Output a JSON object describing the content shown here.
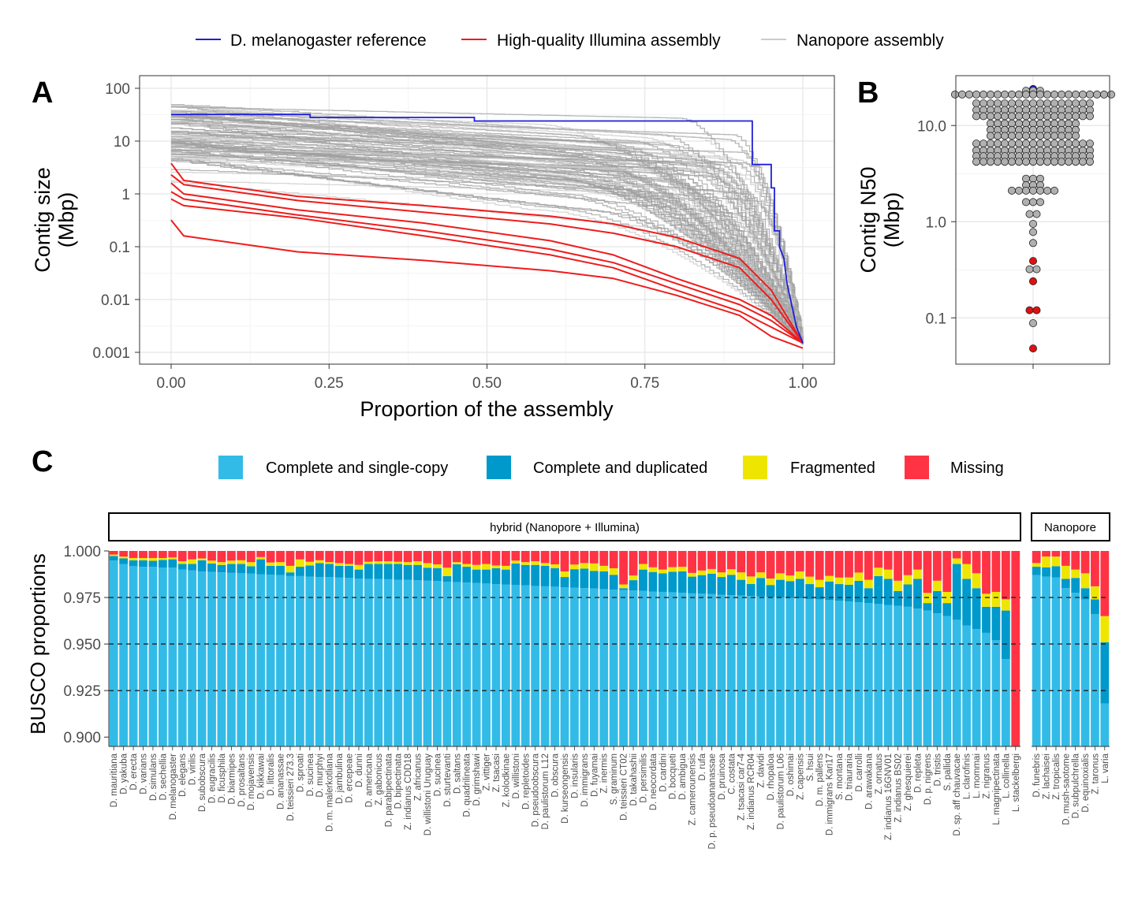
{
  "panels": {
    "a": "A",
    "b": "B",
    "c": "C"
  },
  "colors": {
    "reference": "#1f1fd6",
    "illumina": "#ee1c1c",
    "nanopore_line": "#9e9e9e",
    "complete_single": "#33bbe8",
    "complete_duplicated": "#0099cc",
    "fragmented": "#eee600",
    "missing": "#ff3344",
    "point_gray": "#b0b0b0",
    "point_blue": "#1f1fd6",
    "point_red": "#dd1111"
  },
  "legend_top": [
    {
      "label": "D. melanogaster reference",
      "color": "#1f1fd6"
    },
    {
      "label": "High-quality Illumina assembly",
      "color": "#ee1c1c"
    },
    {
      "label": "Nanopore assembly",
      "color": "#cccccc"
    }
  ],
  "legend_busco": [
    {
      "label": "Complete and single-copy",
      "color": "#33bbe8"
    },
    {
      "label": "Complete and duplicated",
      "color": "#0099cc"
    },
    {
      "label": "Fragmented",
      "color": "#eee600"
    },
    {
      "label": "Missing",
      "color": "#ff3344"
    }
  ],
  "chart_data": [
    {
      "panel": "A",
      "type": "line",
      "xlabel": "Proportion of the assembly",
      "ylabel": "Contig size (Mbp)",
      "ylabel_lines": [
        "Contig size",
        "(Mbp)"
      ],
      "xlim": [
        0,
        1
      ],
      "ylim": [
        0.001,
        100
      ],
      "yscale": "log",
      "xticks": [
        "0.00",
        "0.25",
        "0.50",
        "0.75",
        "1.00"
      ],
      "yticks": [
        "100",
        "10",
        "1",
        "0.1",
        "0.01",
        "0.001"
      ],
      "grid": true,
      "series": [
        {
          "name": "D. melanogaster reference",
          "x": [
            0,
            0.22,
            0.22,
            0.48,
            0.48,
            0.92,
            0.92,
            0.95,
            0.95,
            0.955,
            0.955,
            0.963,
            0.963,
            0.97,
            0.975,
            0.99,
            1.0
          ],
          "y": [
            32,
            32,
            28,
            28,
            24,
            24,
            3.6,
            3.6,
            1.3,
            1.3,
            0.2,
            0.2,
            0.1,
            0.06,
            0.02,
            0.003,
            0.0015
          ]
        },
        {
          "name": "High-quality Illumina assembly",
          "x": [
            0,
            0.02,
            0.2,
            0.4,
            0.6,
            0.7,
            0.8,
            0.9,
            0.95,
            1.0
          ],
          "y": [
            3.8,
            1.8,
            0.9,
            0.6,
            0.38,
            0.27,
            0.15,
            0.06,
            0.015,
            0.0015
          ]
        },
        {
          "name": "High-quality Illumina assembly",
          "x": [
            0,
            0.02,
            0.2,
            0.4,
            0.6,
            0.7,
            0.8,
            0.9,
            0.95,
            1.0
          ],
          "y": [
            2.3,
            1.5,
            0.75,
            0.45,
            0.27,
            0.18,
            0.1,
            0.04,
            0.01,
            0.0015
          ]
        },
        {
          "name": "High-quality Illumina assembly",
          "x": [
            0,
            0.02,
            0.2,
            0.4,
            0.6,
            0.7,
            0.8,
            0.9,
            0.95,
            1.0
          ],
          "y": [
            1.6,
            1.0,
            0.5,
            0.28,
            0.13,
            0.07,
            0.025,
            0.01,
            0.005,
            0.0015
          ]
        },
        {
          "name": "High-quality Illumina assembly",
          "x": [
            0,
            0.02,
            0.2,
            0.4,
            0.6,
            0.7,
            0.8,
            0.9,
            0.95,
            1.0
          ],
          "y": [
            1.1,
            0.8,
            0.4,
            0.2,
            0.09,
            0.05,
            0.02,
            0.008,
            0.004,
            0.0015
          ]
        },
        {
          "name": "High-quality Illumina assembly",
          "x": [
            0,
            0.02,
            0.2,
            0.4,
            0.6,
            0.7,
            0.8,
            0.9,
            0.95,
            1.0
          ],
          "y": [
            0.8,
            0.6,
            0.35,
            0.16,
            0.07,
            0.04,
            0.015,
            0.006,
            0.003,
            0.0015
          ]
        },
        {
          "name": "High-quality Illumina assembly",
          "x": [
            0,
            0.02,
            0.2,
            0.4,
            0.6,
            0.7,
            0.8,
            0.9,
            0.95,
            1.0
          ],
          "y": [
            0.32,
            0.16,
            0.08,
            0.055,
            0.035,
            0.025,
            0.012,
            0.005,
            0.002,
            0.0012
          ]
        }
      ],
      "nanopore_count": 90
    },
    {
      "panel": "B",
      "type": "scatter",
      "ylabel": "Contig N50 (Mbp)",
      "ylabel_lines": [
        "Contig N50",
        "(Mbp)"
      ],
      "yscale": "log",
      "ylim": [
        0.033,
        33
      ],
      "yticks": [
        "10.0",
        "1.0",
        "0.1"
      ],
      "points": [
        {
          "y": 24,
          "color": "blue"
        },
        {
          "y": 23,
          "count": 3,
          "color": "gray"
        },
        {
          "y": 21,
          "count": 23,
          "color": "gray"
        },
        {
          "y": 17,
          "count": 17,
          "color": "gray"
        },
        {
          "y": 14.5,
          "count": 17,
          "color": "gray"
        },
        {
          "y": 12.5,
          "count": 17,
          "color": "gray"
        },
        {
          "y": 10.5,
          "count": 13,
          "color": "gray"
        },
        {
          "y": 9,
          "count": 13,
          "color": "gray"
        },
        {
          "y": 7.8,
          "count": 13,
          "color": "gray"
        },
        {
          "y": 6.5,
          "count": 17,
          "color": "gray"
        },
        {
          "y": 5.5,
          "count": 17,
          "color": "gray"
        },
        {
          "y": 4.8,
          "count": 17,
          "color": "gray"
        },
        {
          "y": 4.2,
          "count": 17,
          "color": "gray"
        },
        {
          "y": 2.8,
          "count": 3,
          "color": "gray"
        },
        {
          "y": 2.4,
          "count": 3,
          "color": "gray"
        },
        {
          "y": 2.1,
          "count": 7,
          "color": "gray"
        },
        {
          "y": 1.6,
          "count": 3,
          "color": "gray"
        },
        {
          "y": 1.2,
          "count": 2,
          "color": "gray"
        },
        {
          "y": 0.95,
          "count": 1,
          "color": "gray"
        },
        {
          "y": 0.78,
          "count": 1,
          "color": "gray"
        },
        {
          "y": 0.6,
          "count": 1,
          "color": "gray"
        },
        {
          "y": 0.39,
          "count": 1,
          "color": "red"
        },
        {
          "y": 0.32,
          "count": 2,
          "color": "gray"
        },
        {
          "y": 0.24,
          "count": 1,
          "color": "red"
        },
        {
          "y": 0.12,
          "count": 2,
          "color": "red"
        },
        {
          "y": 0.088,
          "count": 1,
          "color": "gray"
        },
        {
          "y": 0.048,
          "count": 1,
          "color": "red"
        }
      ]
    },
    {
      "panel": "C",
      "type": "bar",
      "stacked": true,
      "ylabel": "BUSCO proportions",
      "ylim": [
        0.895,
        1.0
      ],
      "yticks": [
        "1.000",
        "0.975",
        "0.950",
        "0.925",
        "0.900"
      ],
      "hlines": [
        0.975,
        0.95,
        0.925
      ],
      "groups": [
        {
          "label": "hybrid (Nanopore + Illumina)",
          "categories": [
            "D. mauritiana",
            "D. yakuba",
            "D. erecta",
            "D. varians",
            "D. simulans",
            "D. sechellia",
            "D. melanogaster",
            "D. elegans",
            "D. virilis",
            "D. subobscura",
            "D. eugracilis",
            "D. ficusphila",
            "D. biarmipes",
            "D. prosaltans",
            "D. mojavensis",
            "D. kikkawai",
            "D. littoralis",
            "D. ananassae",
            "D. teissieri 273.3",
            "D. sproati",
            "D. sucinea",
            "D. murphyi",
            "D. m. malerkotliana",
            "D. jambulina",
            "D. ercepeae",
            "D. dunni",
            "D. americana",
            "Z. gabonicus",
            "D. parabipectinata",
            "D. bipectinata",
            "Z. indianus CDD18",
            "Z. africanus",
            "D. willistoni Uruguay",
            "D. sucinea",
            "D. sturtevanti",
            "D. saltans",
            "D. quadrilineata",
            "D. grimshawi",
            "Z. vittiger",
            "Z. tsacasi",
            "Z. kolodkinae",
            "D. willistoni",
            "D. repletoides",
            "D. pseudoobscura",
            "D. paulistorum L12",
            "D. obscura",
            "D. kurseongensis",
            "D. insularis",
            "D. immigrans",
            "D. fuyamai",
            "Z. inermis",
            "S. graminum",
            "D. teissieri CT02",
            "D. takahashii",
            "D. persimilis",
            "D. neocordata",
            "D. cardini",
            "D. bocqueti",
            "D. ambigua",
            "Z. camerounensis",
            "D. rufa",
            "D. p. pseudoananassae",
            "D. pruinosa",
            "C. costata",
            "Z. tsacasi car7-4",
            "Z. indianus RCR04",
            "Z. davidi",
            "D. rhopaloa",
            "D. paulistorum L06",
            "D. oshimai",
            "Z. capensis",
            "S. hsui",
            "D. m. pallens",
            "D. immigrans Kari17",
            "S. montana",
            "D. triauraria",
            "D. carrolli",
            "D. arawakana",
            "Z. ornatus",
            "Z. indianus 16GNV01",
            "Z. indianus BS02",
            "Z. ghesquierei",
            "D. repleta",
            "D. p. nigrens",
            "D. tristis",
            "S. pallida",
            "D. sp. aff chauvacae",
            "L. clarofinis",
            "L. mommai",
            "Z. nigranus",
            "L. magnipectinata",
            "L. collinella",
            "L. stackelbergi"
          ],
          "complete_single": [
            0.9948,
            0.993,
            0.9918,
            0.9915,
            0.9915,
            0.991,
            0.991,
            0.99,
            0.9895,
            0.989,
            0.9888,
            0.9885,
            0.9882,
            0.988,
            0.9878,
            0.9875,
            0.9872,
            0.987,
            0.9865,
            0.9865,
            0.9862,
            0.986,
            0.986,
            0.9858,
            0.9855,
            0.9852,
            0.985,
            0.985,
            0.9848,
            0.9845,
            0.9845,
            0.9842,
            0.984,
            0.9838,
            0.9835,
            0.9833,
            0.983,
            0.9828,
            0.9825,
            0.9822,
            0.982,
            0.9818,
            0.9815,
            0.9812,
            0.981,
            0.9808,
            0.9805,
            0.9802,
            0.98,
            0.9798,
            0.9795,
            0.9792,
            0.979,
            0.9788,
            0.9785,
            0.9782,
            0.978,
            0.9778,
            0.9775,
            0.9772,
            0.977,
            0.9768,
            0.9765,
            0.9762,
            0.976,
            0.9758,
            0.9755,
            0.9752,
            0.975,
            0.9748,
            0.9745,
            0.9742,
            0.974,
            0.9736,
            0.9732,
            0.9728,
            0.9724,
            0.972,
            0.9715,
            0.971,
            0.9705,
            0.97,
            0.969,
            0.968,
            0.9665,
            0.965,
            0.963,
            0.96,
            0.958,
            0.956,
            0.952,
            0.942,
            0.895
          ],
          "complete_duplicated": [
            0.0025,
            0.003,
            0.0032,
            0.0035,
            0.0032,
            0.0042,
            0.0045,
            0.003,
            0.0035,
            0.006,
            0.0045,
            0.004,
            0.0048,
            0.005,
            0.004,
            0.008,
            0.0048,
            0.005,
            0.002,
            0.005,
            0.006,
            0.0075,
            0.007,
            0.0062,
            0.0065,
            0.0048,
            0.008,
            0.008,
            0.0082,
            0.0085,
            0.008,
            0.0083,
            0.007,
            0.007,
            0.003,
            0.0095,
            0.0085,
            0.0072,
            0.0075,
            0.0085,
            0.008,
            0.0115,
            0.011,
            0.0113,
            0.011,
            0.01,
            0.0055,
            0.01,
            0.0105,
            0.0095,
            0.0095,
            0.008,
            0.001,
            0.0055,
            0.0115,
            0.0105,
            0.01,
            0.011,
            0.0115,
            0.009,
            0.01,
            0.011,
            0.0095,
            0.011,
            0.0085,
            0.0065,
            0.01,
            0.0065,
            0.0095,
            0.009,
            0.0105,
            0.008,
            0.0065,
            0.01,
            0.009,
            0.009,
            0.0115,
            0.008,
            0.015,
            0.014,
            0.008,
            0.012,
            0.016,
            0.004,
            0.012,
            0.007,
            0.03,
            0.025,
            0.022,
            0.014,
            0.018,
            0.026,
            0.0
          ],
          "fragmented": [
            0.0008,
            0.001,
            0.0012,
            0.0012,
            0.0015,
            0.001,
            0.001,
            0.0015,
            0.0025,
            0.001,
            0.0015,
            0.0015,
            0.0018,
            0.002,
            0.0022,
            0.0012,
            0.0018,
            0.002,
            0.0035,
            0.004,
            0.002,
            0.0015,
            0.001,
            0.0015,
            0.001,
            0.0025,
            0.0012,
            0.0015,
            0.0015,
            0.0012,
            0.0015,
            0.002,
            0.0025,
            0.002,
            0.0045,
            0.0012,
            0.0015,
            0.0025,
            0.003,
            0.0015,
            0.002,
            0.0015,
            0.0015,
            0.002,
            0.0015,
            0.002,
            0.003,
            0.0025,
            0.003,
            0.004,
            0.003,
            0.0035,
            0.002,
            0.0025,
            0.003,
            0.0025,
            0.002,
            0.0025,
            0.0025,
            0.002,
            0.0025,
            0.0025,
            0.0025,
            0.003,
            0.004,
            0.004,
            0.003,
            0.0035,
            0.0035,
            0.003,
            0.004,
            0.004,
            0.004,
            0.003,
            0.0035,
            0.004,
            0.0045,
            0.0045,
            0.0045,
            0.005,
            0.0055,
            0.005,
            0.005,
            0.0055,
            0.0055,
            0.006,
            0.003,
            0.008,
            0.008,
            0.007,
            0.008,
            0.006,
            0.0
          ]
        },
        {
          "label": "Nanopore",
          "categories": [
            "D. funebris",
            "Z. lachaisei",
            "Z. tropicalis",
            "D. mush-saotome",
            "D. subpulchrella",
            "D. equinoxialis",
            "Z. taronus",
            "L. varia"
          ],
          "complete_single": [
            0.987,
            0.9862,
            0.9858,
            0.98,
            0.9775,
            0.974,
            0.966,
            0.918
          ],
          "complete_duplicated": [
            0.0045,
            0.005,
            0.006,
            0.005,
            0.008,
            0.006,
            0.008,
            0.033
          ],
          "fragmented": [
            0.002,
            0.0058,
            0.0052,
            0.007,
            0.0045,
            0.008,
            0.007,
            0.014
          ]
        }
      ]
    }
  ]
}
